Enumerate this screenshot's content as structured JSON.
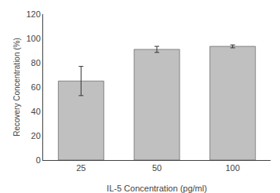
{
  "chart_data": {
    "type": "bar",
    "categories": [
      "25",
      "50",
      "100"
    ],
    "values": [
      65.0,
      91.0,
      93.5
    ],
    "errors": [
      12.0,
      2.5,
      1.2
    ],
    "color": "#c0c0c0",
    "xlabel": "IL-5 Concentration (pg/ml)",
    "ylabel": "Recovery Concentration (%)",
    "ylim": [
      0,
      120
    ],
    "yticks": [
      0,
      20,
      40,
      60,
      80,
      100,
      120
    ],
    "grid": false
  }
}
